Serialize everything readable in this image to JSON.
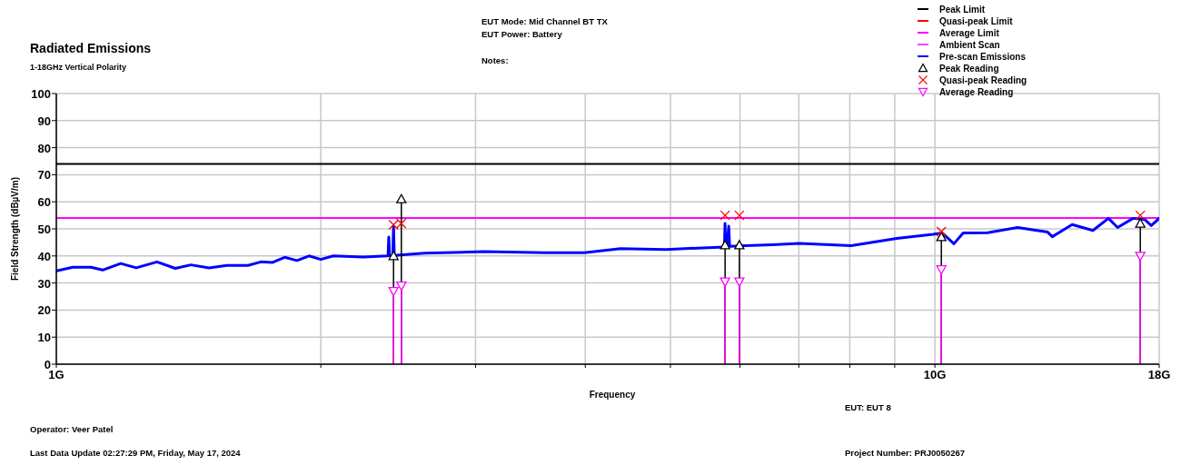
{
  "chart_data": {
    "type": "line",
    "title": "Radiated Emissions",
    "subtitle": "1-18GHz Vertical Polarity",
    "xlabel": "Frequency",
    "ylabel": "Field Strength (dBµV/m)",
    "annotations": [
      "EUT Mode: Mid Channel BT TX",
      "EUT Power: Battery",
      "Notes:",
      "Operator: Veer Patel",
      "Last Data Update 02:27:29 PM, Friday, May 17, 2024",
      "EUT: EUT 8",
      "Project Number: PRJ0050267"
    ],
    "log": "x",
    "grid": true,
    "legend": "top right",
    "xlim": [
      1,
      18
    ],
    "xticks": [
      {
        "value": 1,
        "label": "1G"
      },
      {
        "value": 2,
        "label": null
      },
      {
        "value": 3,
        "label": null
      },
      {
        "value": 4,
        "label": null
      },
      {
        "value": 5,
        "label": null
      },
      {
        "value": 6,
        "label": null
      },
      {
        "value": 7,
        "label": null
      },
      {
        "value": 8,
        "label": null
      },
      {
        "value": 9,
        "label": null
      },
      {
        "value": 10,
        "label": "10G"
      },
      {
        "value": 18,
        "label": "18G"
      }
    ],
    "ylim": [
      0,
      100
    ],
    "yticks": [
      0,
      10,
      20,
      30,
      40,
      50,
      60,
      70,
      80,
      90,
      100
    ],
    "series": [
      {
        "name": "Peak Limit",
        "color": "#000000",
        "x": [
          1,
          18
        ],
        "values": [
          74,
          74
        ]
      },
      {
        "name": "Quasi-peak Limit",
        "color": "#ff0000"
      },
      {
        "name": "Average Limit",
        "color": "#ff00ff",
        "x": [
          1,
          18
        ],
        "values": [
          54,
          54
        ]
      },
      {
        "name": "Ambient Scan",
        "color": "#ff44ff"
      },
      {
        "name": "Pre-scan Emissions",
        "color": "#0000ff",
        "x": [
          1.0,
          1.044,
          1.095,
          1.129,
          1.184,
          1.233,
          1.302,
          1.366,
          1.423,
          1.492,
          1.564,
          1.653,
          1.709,
          1.763,
          1.819,
          1.879,
          1.939,
          2.0,
          2.067,
          2.236,
          2.38,
          2.385,
          2.39,
          2.395,
          2.41,
          2.415,
          2.42,
          2.425,
          2.624,
          3.069,
          3.601,
          3.99,
          4.387,
          4.942,
          5.76,
          5.769,
          5.78,
          5.8,
          5.825,
          5.84,
          6.08,
          6.53,
          7.01,
          8.03,
          9.05,
          9.95,
          10.19,
          10.51,
          10.77,
          11.48,
          12.42,
          13.44,
          13.6,
          14.33,
          15.13,
          15.76,
          16.14,
          16.81,
          17.34,
          17.63,
          18
        ],
        "values": [
          34.5,
          35.8,
          35.8,
          34.8,
          37.2,
          35.6,
          37.8,
          35.4,
          36.7,
          35.6,
          36.5,
          36.5,
          37.8,
          37.6,
          39.5,
          38.3,
          40,
          38.7,
          40,
          39.6,
          40,
          40,
          47,
          40,
          40,
          40,
          51,
          40.2,
          41,
          41.6,
          41.2,
          41.2,
          42.7,
          42.4,
          43.3,
          52,
          43.3,
          43.3,
          51,
          43.5,
          43.8,
          44.1,
          44.6,
          43.8,
          46.5,
          48,
          48.5,
          44.5,
          48.5,
          48.6,
          50.5,
          48.8,
          47.1,
          51.6,
          49.4,
          53.9,
          50.5,
          53.9,
          53.4,
          51.2,
          53.9
        ]
      },
      {
        "name": "Peak Reading",
        "type": "lollipop",
        "marker": "triangle",
        "color": "#000000",
        "x": [
          2.42,
          2.47,
          5.77,
          5.99,
          10.17,
          17.13
        ],
        "values": [
          40,
          61,
          44,
          44,
          47,
          52
        ]
      },
      {
        "name": "Quasi-peak Reading",
        "type": "scatter",
        "marker": "cross",
        "color": "#ff0000",
        "x": [
          2.42,
          2.47,
          5.77,
          5.99,
          10.17,
          17.13
        ],
        "values": [
          51.5,
          52,
          55,
          55,
          49,
          55
        ]
      },
      {
        "name": "Average Reading",
        "type": "lollipop",
        "marker": "triangle-down",
        "color": "#ff00ff",
        "x": [
          2.42,
          2.47,
          5.77,
          5.99,
          10.17,
          17.13
        ],
        "values": [
          27,
          29,
          30.5,
          30.5,
          35,
          40
        ]
      }
    ]
  }
}
